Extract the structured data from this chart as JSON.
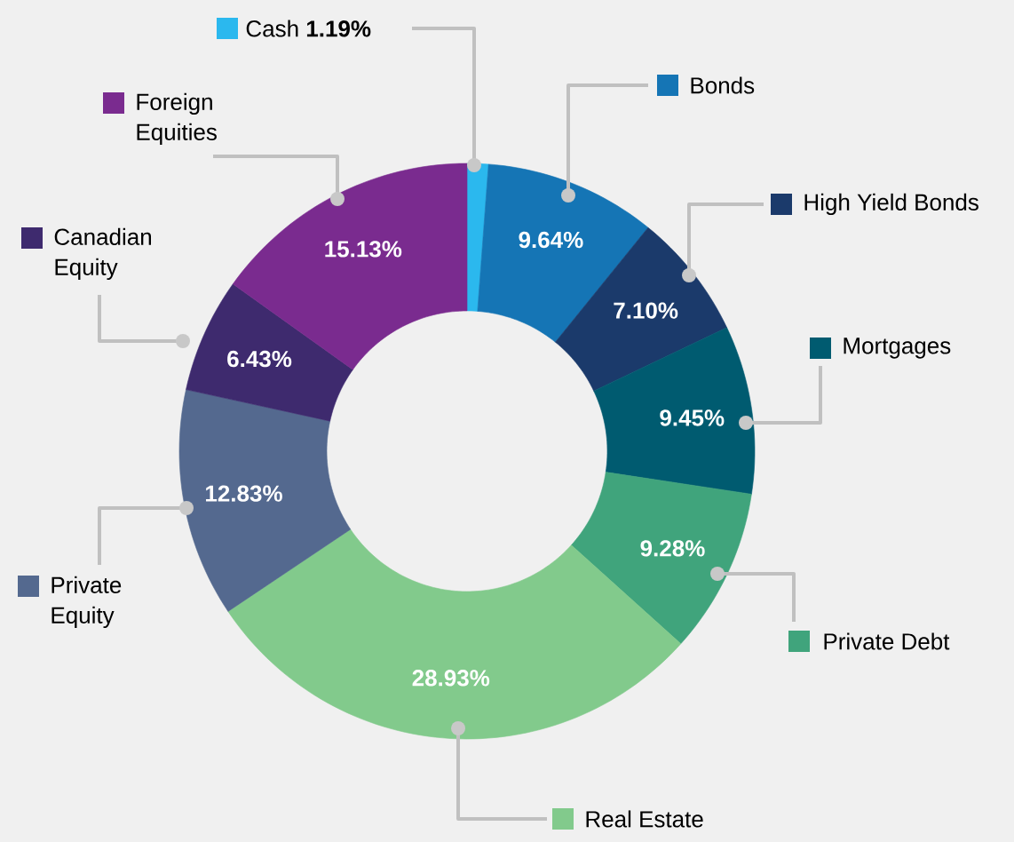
{
  "chart_data": {
    "type": "donut",
    "categories": [
      "Cash",
      "Bonds",
      "High Yield Bonds",
      "Mortgages",
      "Private Debt",
      "Real Estate",
      "Private Equity",
      "Canadian Equity",
      "Foreign Equities"
    ],
    "values": [
      1.19,
      9.64,
      7.1,
      9.45,
      9.28,
      28.93,
      12.83,
      6.43,
      15.13
    ],
    "value_labels": [
      "1.19%",
      "9.64%",
      "7.10%",
      "9.45%",
      "9.28%",
      "28.93%",
      "12.83%",
      "6.43%",
      "15.13%"
    ],
    "legend": "right",
    "colors": [
      "#2bb8ee",
      "#1575b5",
      "#1b3a6b",
      "#005b70",
      "#40a47c",
      "#82ca8c",
      "#54698f",
      "#3e2a6e",
      "#7a2b8f"
    ]
  }
}
